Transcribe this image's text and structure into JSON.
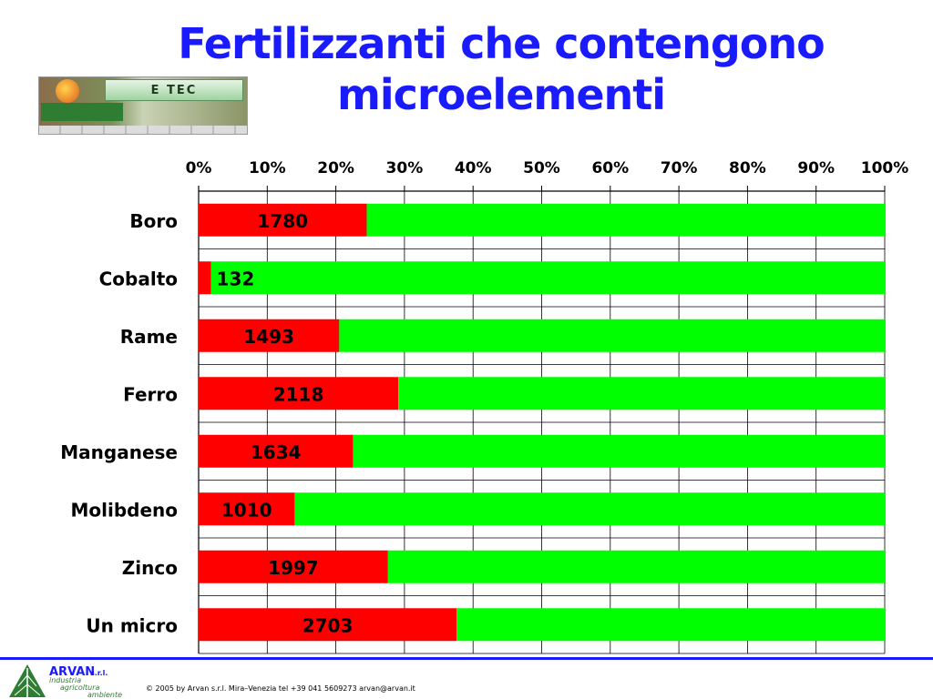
{
  "slide": {
    "title": "Fertilizzanti che contengono microelementi",
    "logo_banner": "E  TEC",
    "footer_company": "ARVAN",
    "footer_company_suffix": "s.r.l.",
    "footer_tag1": "industria",
    "footer_tag2": "agricoltura",
    "footer_tag3": "ambiente",
    "footer_copyright": "© 2005 by Arvan s.r.l. Mira–Venezia tel +39 041 5609273 arvan@arvan.it"
  },
  "chart_data": {
    "type": "bar",
    "orientation": "horizontal",
    "stacked": "percent",
    "categories": [
      "Boro",
      "Cobalto",
      "Rame",
      "Ferro",
      "Manganese",
      "Molibdeno",
      "Zinco",
      "Un micro"
    ],
    "series": [
      {
        "values": [
          1780,
          132,
          1493,
          2118,
          1634,
          1010,
          1997,
          2703
        ],
        "color": "#ff0000",
        "share_pct": [
          24.5,
          1.8,
          20.5,
          29.1,
          22.5,
          14.0,
          27.6,
          37.6
        ]
      },
      {
        "color": "#00ff00"
      }
    ],
    "data_labels": [
      "1780",
      "132",
      "1493",
      "2118",
      "1634",
      "1010",
      "1997",
      "2703"
    ],
    "x_ticks": [
      "0%",
      "10%",
      "20%",
      "30%",
      "40%",
      "50%",
      "60%",
      "70%",
      "80%",
      "90%",
      "100%"
    ],
    "xlim": [
      0,
      100
    ],
    "x_axis_position": "top",
    "grid": true,
    "legend": "none"
  }
}
